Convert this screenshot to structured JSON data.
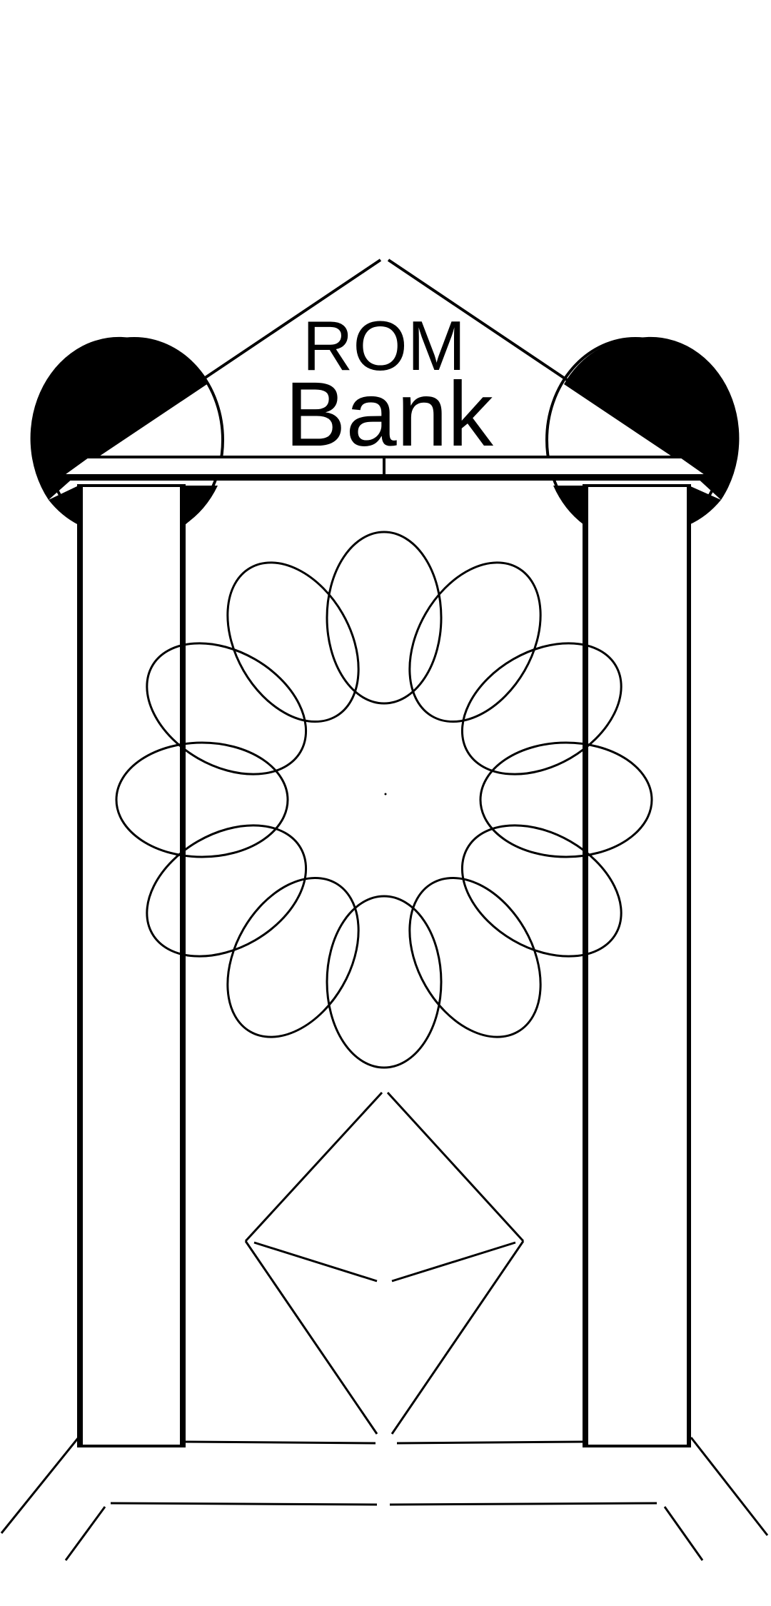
{
  "logo": {
    "line1": "ROM",
    "line2": "Bank"
  },
  "colors": {
    "background": "#ffffff",
    "ink": "#000000"
  },
  "drawing": {
    "description_icon": "bank-building-icon",
    "vault_ring_petals": 12,
    "ethereum_mark_icon": "ethereum-diamond-icon"
  }
}
